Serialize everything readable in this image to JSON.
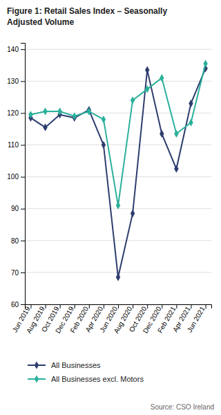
{
  "chart_data": {
    "type": "line",
    "title": "Figure 1: Retail Sales Index – Seasonally\nAdjusted Volume",
    "source": "Source: CSO Ireland",
    "categories": [
      "Jun 2019",
      "Aug 2019",
      "Oct 2019",
      "Dec 2019",
      "Feb 2020",
      "Apr 2020",
      "Jun 2020",
      "Aug 2020",
      "Oct 2020",
      "Dec 2020",
      "Feb 2021",
      "Apr 2021",
      "Jun 2021"
    ],
    "series": [
      {
        "name": "All Businesses",
        "color": "#2e3d6e",
        "marker": "diamond",
        "values": [
          118.5,
          115.5,
          119.5,
          118.5,
          121.0,
          110.0,
          68.5,
          88.5,
          133.5,
          113.5,
          102.5,
          123.0,
          134.0
        ]
      },
      {
        "name": "All Businesses excl. Motors",
        "color": "#2ab09b",
        "marker": "diamond",
        "values": [
          119.5,
          120.5,
          120.5,
          119.0,
          120.5,
          118.0,
          91.0,
          124.0,
          127.5,
          131.0,
          113.5,
          117.0,
          135.5
        ]
      }
    ],
    "ylim": [
      60,
      142
    ],
    "yticks": [
      60,
      70,
      80,
      90,
      100,
      110,
      120,
      130,
      140
    ],
    "grid": true,
    "legend": "bottom"
  }
}
